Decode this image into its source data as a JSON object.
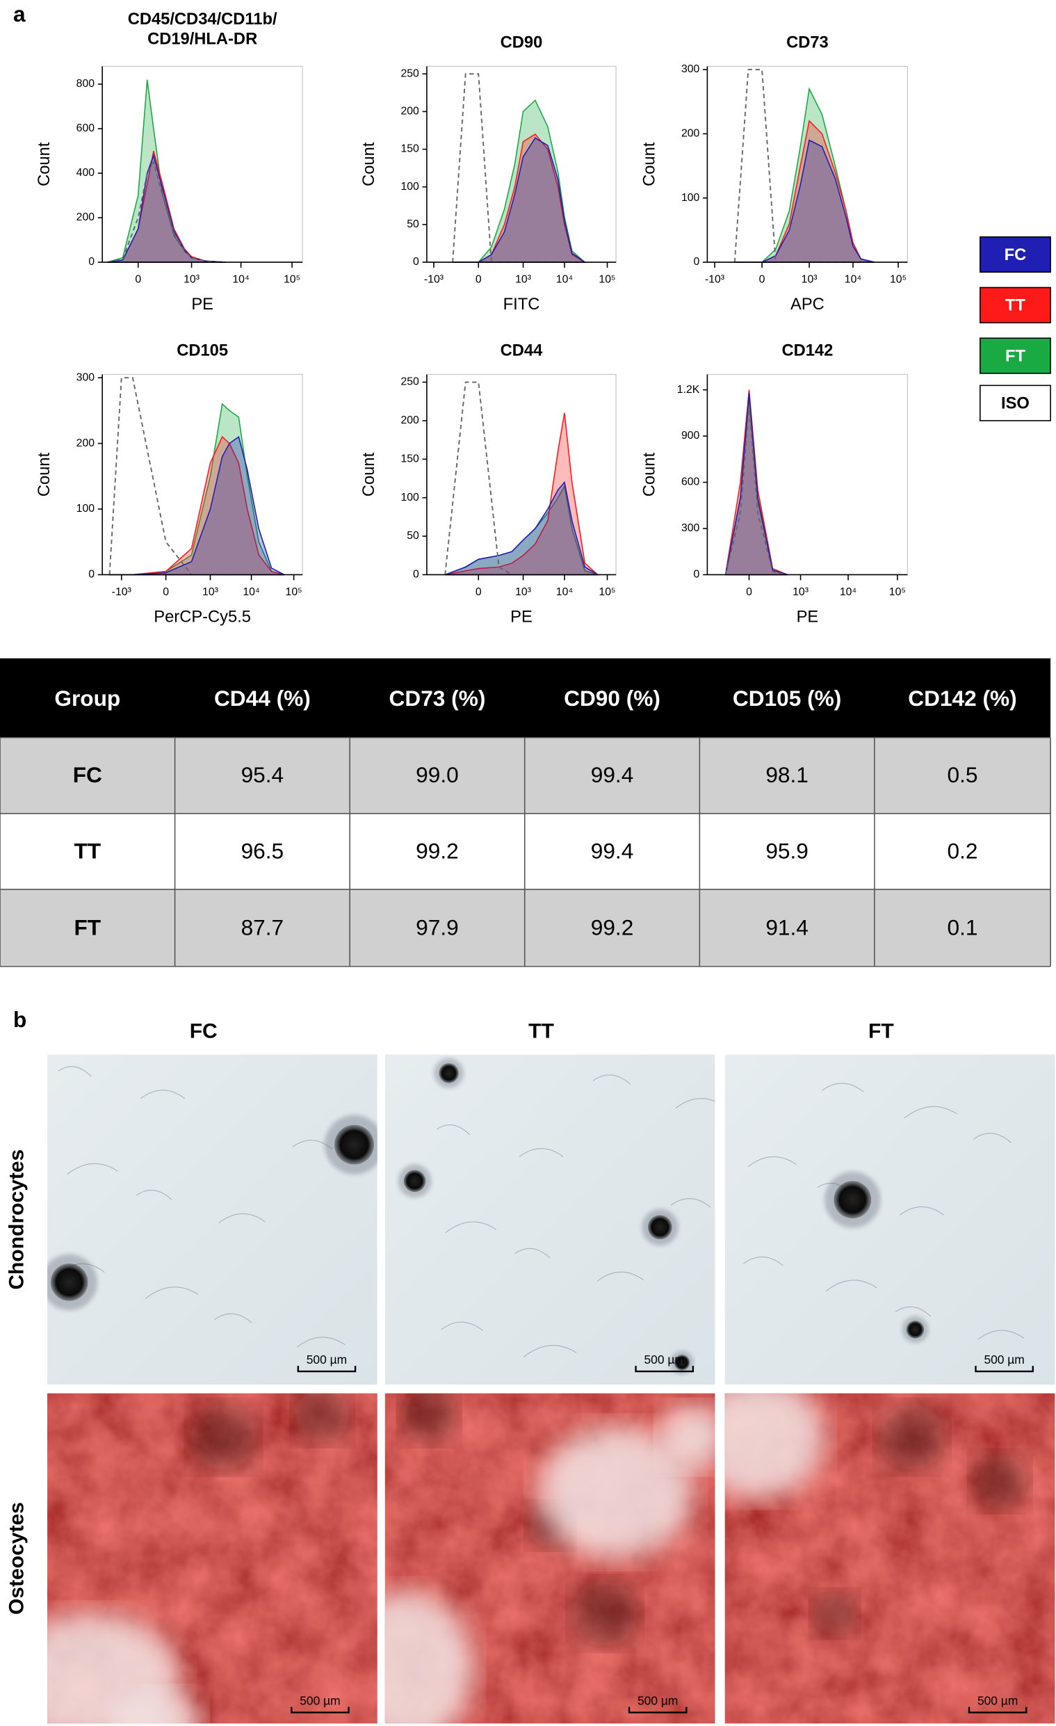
{
  "panel_labels": [
    "a",
    "b"
  ],
  "chart_data": [
    {
      "type": "area",
      "title": "CD45/CD34/CD11b/\nCD19/HLA-DR",
      "x_label": "PE",
      "y_label": "Count",
      "xscale": "biexponential",
      "x": [
        -300,
        -100,
        0,
        50,
        100,
        200,
        400,
        700,
        1000,
        2000,
        5000
      ],
      "series": [
        {
          "name": "FT",
          "color": "#1aaa44",
          "values": [
            0,
            20,
            300,
            820,
            600,
            300,
            120,
            50,
            20,
            5,
            0
          ]
        },
        {
          "name": "TT",
          "color": "#ff1a1a",
          "values": [
            0,
            10,
            150,
            350,
            500,
            350,
            150,
            60,
            25,
            5,
            0
          ]
        },
        {
          "name": "FC",
          "color": "#1f1fb4",
          "values": [
            0,
            10,
            150,
            400,
            480,
            330,
            140,
            55,
            20,
            5,
            0
          ]
        },
        {
          "name": "ISO",
          "color": "#666666",
          "line_style": "dashed",
          "values": [
            0,
            15,
            200,
            400,
            450,
            300,
            130,
            50,
            20,
            5,
            0
          ]
        }
      ],
      "xlim": [
        -400,
        160000
      ],
      "ylim": [
        0,
        880
      ],
      "xticks": [
        0,
        {
          "value": 1000,
          "label": "10³"
        },
        {
          "value": 10000,
          "label": "10⁴"
        },
        {
          "value": 100000,
          "label": "10⁵"
        }
      ],
      "yticks": [
        0,
        200,
        400,
        600,
        800
      ]
    },
    {
      "type": "area",
      "title": "CD90",
      "x_label": "FITC",
      "y_label": "Count",
      "xscale": "biexponential",
      "x": [
        -300,
        -100,
        0,
        100,
        300,
        600,
        1000,
        2000,
        4000,
        7000,
        10000,
        15000,
        30000
      ],
      "series": [
        {
          "name": "FT",
          "color": "#1aaa44",
          "values": [
            0,
            0,
            0,
            20,
            70,
            130,
            200,
            215,
            180,
            120,
            60,
            15,
            0
          ]
        },
        {
          "name": "TT",
          "color": "#ff1a1a",
          "values": [
            0,
            0,
            0,
            10,
            50,
            100,
            160,
            170,
            150,
            100,
            50,
            10,
            0
          ]
        },
        {
          "name": "FC",
          "color": "#1f1fb4",
          "values": [
            0,
            0,
            0,
            10,
            40,
            90,
            140,
            165,
            155,
            110,
            55,
            12,
            0
          ]
        },
        {
          "name": "ISO",
          "color": "#666666",
          "line_style": "dashed",
          "values": [
            0,
            250,
            250,
            0,
            0,
            0,
            0,
            0,
            0,
            0,
            0,
            0,
            0
          ]
        }
      ],
      "xlim": [
        -1500,
        160000
      ],
      "ylim": [
        0,
        260
      ],
      "xticks": [
        {
          "value": -1000,
          "label": "-10³"
        },
        0,
        {
          "value": 1000,
          "label": "10³"
        },
        {
          "value": 10000,
          "label": "10⁴"
        },
        {
          "value": 100000,
          "label": "10⁵"
        }
      ],
      "yticks": [
        0,
        50,
        100,
        150,
        200,
        250
      ]
    },
    {
      "type": "area",
      "title": "CD73",
      "x_label": "APC",
      "y_label": "Count",
      "xscale": "biexponential",
      "x": [
        -300,
        -100,
        0,
        100,
        300,
        600,
        1000,
        2000,
        4000,
        7000,
        10000,
        15000,
        30000
      ],
      "series": [
        {
          "name": "FT",
          "color": "#1aaa44",
          "values": [
            0,
            0,
            0,
            20,
            80,
            180,
            270,
            230,
            150,
            80,
            30,
            5,
            0
          ]
        },
        {
          "name": "TT",
          "color": "#ff1a1a",
          "values": [
            0,
            0,
            0,
            10,
            60,
            150,
            220,
            200,
            140,
            80,
            30,
            5,
            0
          ]
        },
        {
          "name": "FC",
          "color": "#1f1fb4",
          "values": [
            0,
            0,
            0,
            10,
            50,
            120,
            190,
            180,
            130,
            70,
            25,
            5,
            0
          ]
        },
        {
          "name": "ISO",
          "color": "#666666",
          "line_style": "dashed",
          "values": [
            0,
            300,
            300,
            0,
            0,
            0,
            0,
            0,
            0,
            0,
            0,
            0,
            0
          ]
        }
      ],
      "xlim": [
        -1500,
        160000
      ],
      "ylim": [
        0,
        305
      ],
      "xticks": [
        {
          "value": -1000,
          "label": "-10³"
        },
        0,
        {
          "value": 1000,
          "label": "10³"
        },
        {
          "value": 10000,
          "label": "10⁴"
        },
        {
          "value": 100000,
          "label": "10⁵"
        }
      ],
      "yticks": [
        0,
        100,
        200,
        300
      ]
    },
    {
      "type": "area",
      "title": "CD105",
      "x_label": "PerCP-Cy5.5",
      "y_label": "Count",
      "xscale": "biexponential",
      "x": [
        -2000,
        -1000,
        -500,
        0,
        300,
        1000,
        2000,
        3000,
        5000,
        8000,
        15000,
        30000,
        60000
      ],
      "series": [
        {
          "name": "FT",
          "color": "#1aaa44",
          "values": [
            0,
            0,
            0,
            5,
            30,
            150,
            260,
            250,
            240,
            150,
            50,
            5,
            0
          ]
        },
        {
          "name": "TT",
          "color": "#ff1a1a",
          "values": [
            0,
            0,
            0,
            5,
            40,
            170,
            210,
            200,
            170,
            100,
            30,
            5,
            0
          ]
        },
        {
          "name": "FC",
          "color": "#1f1fb4",
          "values": [
            0,
            0,
            0,
            3,
            20,
            100,
            180,
            200,
            210,
            160,
            70,
            10,
            0
          ]
        },
        {
          "name": "ISO",
          "color": "#666666",
          "line_style": "dashed",
          "values": [
            0,
            300,
            300,
            50,
            0,
            0,
            0,
            0,
            0,
            0,
            0,
            0,
            0
          ]
        }
      ],
      "xlim": [
        -3000,
        160000
      ],
      "ylim": [
        0,
        305
      ],
      "xticks": [
        {
          "value": -1000,
          "label": "-10³"
        },
        0,
        {
          "value": 1000,
          "label": "10³"
        },
        {
          "value": 10000,
          "label": "10⁴"
        },
        {
          "value": 100000,
          "label": "10⁵"
        }
      ],
      "yticks": [
        0,
        100,
        200,
        300
      ]
    },
    {
      "type": "area",
      "title": "CD44",
      "x_label": "PE",
      "y_label": "Count",
      "xscale": "biexponential",
      "x": [
        -500,
        -100,
        0,
        200,
        500,
        1000,
        2000,
        4000,
        7000,
        10000,
        15000,
        30000,
        60000
      ],
      "series": [
        {
          "name": "FT",
          "color": "#1aaa44",
          "values": [
            0,
            10,
            20,
            25,
            30,
            45,
            60,
            80,
            100,
            115,
            60,
            5,
            0
          ]
        },
        {
          "name": "TT",
          "color": "#ff1a1a",
          "values": [
            0,
            5,
            8,
            10,
            15,
            25,
            40,
            70,
            160,
            210,
            120,
            15,
            0
          ]
        },
        {
          "name": "FC",
          "color": "#1f1fb4",
          "values": [
            0,
            10,
            20,
            25,
            30,
            45,
            60,
            85,
            110,
            120,
            70,
            10,
            0
          ]
        },
        {
          "name": "ISO",
          "color": "#666666",
          "line_style": "dashed",
          "values": [
            0,
            250,
            250,
            10,
            0,
            0,
            0,
            0,
            0,
            0,
            0,
            0,
            0
          ]
        }
      ],
      "xlim": [
        -1500,
        160000
      ],
      "ylim": [
        0,
        260
      ],
      "xticks": [
        0,
        {
          "value": 1000,
          "label": "10³"
        },
        {
          "value": 10000,
          "label": "10⁴"
        },
        {
          "value": 100000,
          "label": "10⁵"
        }
      ],
      "yticks": [
        0,
        50,
        100,
        150,
        200,
        250
      ]
    },
    {
      "type": "area",
      "title": "CD142",
      "x_label": "PE",
      "y_label": "Count",
      "xscale": "biexponential",
      "x": [
        -200,
        -50,
        0,
        50,
        200,
        500
      ],
      "series": [
        {
          "name": "FT",
          "color": "#1aaa44",
          "values": [
            0,
            500,
            1150,
            480,
            30,
            0
          ]
        },
        {
          "name": "TT",
          "color": "#ff1a1a",
          "values": [
            0,
            600,
            1200,
            550,
            40,
            0
          ]
        },
        {
          "name": "FC",
          "color": "#1f1fb4",
          "values": [
            0,
            500,
            1180,
            500,
            30,
            0
          ]
        },
        {
          "name": "ISO",
          "color": "#666666",
          "line_style": "dashed",
          "values": [
            0,
            400,
            1100,
            400,
            20,
            0
          ]
        }
      ],
      "xlim": [
        -600,
        160000
      ],
      "ylim": [
        0,
        1300
      ],
      "xticks": [
        0,
        {
          "value": 1000,
          "label": "10³"
        },
        {
          "value": 10000,
          "label": "10⁴"
        },
        {
          "value": 100000,
          "label": "10⁵"
        }
      ],
      "yticks": [
        0,
        300,
        600,
        900,
        {
          "value": 1200,
          "label": "1.2K"
        }
      ]
    }
  ],
  "legend": [
    "FC",
    "TT",
    "FT",
    "ISO"
  ],
  "table": {
    "header": [
      "Group",
      "CD44 (%)",
      "CD73 (%)",
      "CD90 (%)",
      "CD105 (%)",
      "CD142 (%)"
    ],
    "rows": [
      [
        "FC",
        "95.4",
        "99.0",
        "99.4",
        "98.1",
        "0.5"
      ],
      [
        "TT",
        "96.5",
        "99.2",
        "99.4",
        "95.9",
        "0.2"
      ],
      [
        "FT",
        "87.7",
        "97.9",
        "99.2",
        "91.4",
        "0.1"
      ]
    ]
  },
  "panel_b": {
    "columns": [
      "FC",
      "TT",
      "FT"
    ],
    "rows": [
      "Chondrocytes",
      "Osteocytes"
    ],
    "scale_bar": "500 µm"
  }
}
